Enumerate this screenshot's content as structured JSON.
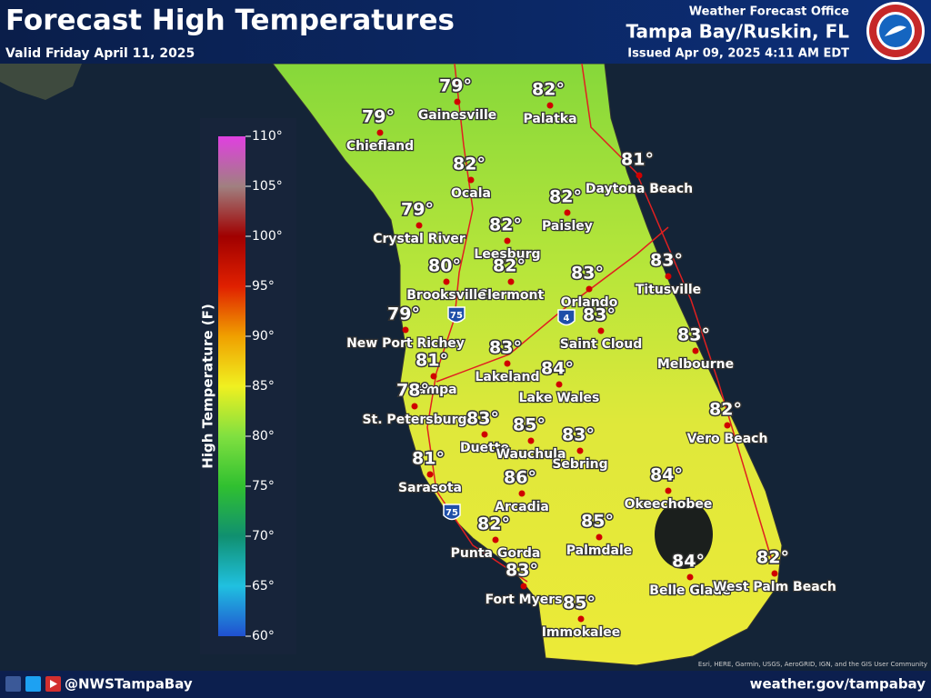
{
  "header": {
    "title": "Forecast High Temperatures",
    "subtitle": "Valid Friday April 11, 2025",
    "office": "Weather Forecast Office",
    "location": "Tampa Bay/Ruskin, FL",
    "issued": "Issued Apr 09, 2025 4:11 AM EDT"
  },
  "legend": {
    "label": "High Temperature (F)",
    "ticks": [
      "110°",
      "105°",
      "100°",
      "95°",
      "90°",
      "85°",
      "80°",
      "75°",
      "70°",
      "65°",
      "60°"
    ]
  },
  "shields": [
    "75",
    "4",
    "75"
  ],
  "cities": [
    {
      "name": "Gainesville",
      "temp": "79°"
    },
    {
      "name": "Palatka",
      "temp": "82°"
    },
    {
      "name": "Chiefland",
      "temp": "79°"
    },
    {
      "name": "Ocala",
      "temp": "82°"
    },
    {
      "name": "Daytona Beach",
      "temp": "81°"
    },
    {
      "name": "Paisley",
      "temp": "82°"
    },
    {
      "name": "Crystal River",
      "temp": "79°"
    },
    {
      "name": "Leesburg",
      "temp": "82°"
    },
    {
      "name": "Clermont",
      "temp": "82°"
    },
    {
      "name": "Brooksville",
      "temp": "80°"
    },
    {
      "name": "Orlando",
      "temp": "83°"
    },
    {
      "name": "Titusville",
      "temp": "83°"
    },
    {
      "name": "New Port Richey",
      "temp": "79°"
    },
    {
      "name": "Saint Cloud",
      "temp": "83°"
    },
    {
      "name": "Melbourne",
      "temp": "83°"
    },
    {
      "name": "Lakeland",
      "temp": "83°"
    },
    {
      "name": "Tampa",
      "temp": "81°"
    },
    {
      "name": "Lake Wales",
      "temp": "84°"
    },
    {
      "name": "St. Petersburg",
      "temp": "78°"
    },
    {
      "name": "Vero Beach",
      "temp": "82°"
    },
    {
      "name": "Duette",
      "temp": "83°"
    },
    {
      "name": "Wauchula",
      "temp": "85°"
    },
    {
      "name": "Sebring",
      "temp": "83°"
    },
    {
      "name": "Sarasota",
      "temp": "81°"
    },
    {
      "name": "Arcadia",
      "temp": "86°"
    },
    {
      "name": "Okeechobee",
      "temp": "84°"
    },
    {
      "name": "Punta Gorda",
      "temp": "82°"
    },
    {
      "name": "Palmdale",
      "temp": "85°"
    },
    {
      "name": "Belle Glade",
      "temp": "84°"
    },
    {
      "name": "West Palm Beach",
      "temp": "82°"
    },
    {
      "name": "Fort Myers",
      "temp": "83°"
    },
    {
      "name": "Immokalee",
      "temp": "85°"
    }
  ],
  "attribution": "Esri, HERE, Garmin, USGS, AeroGRID, IGN, and the GIS User Community",
  "footer": {
    "handle": "@NWSTampaBay",
    "website": "weather.gov/tampabay"
  }
}
